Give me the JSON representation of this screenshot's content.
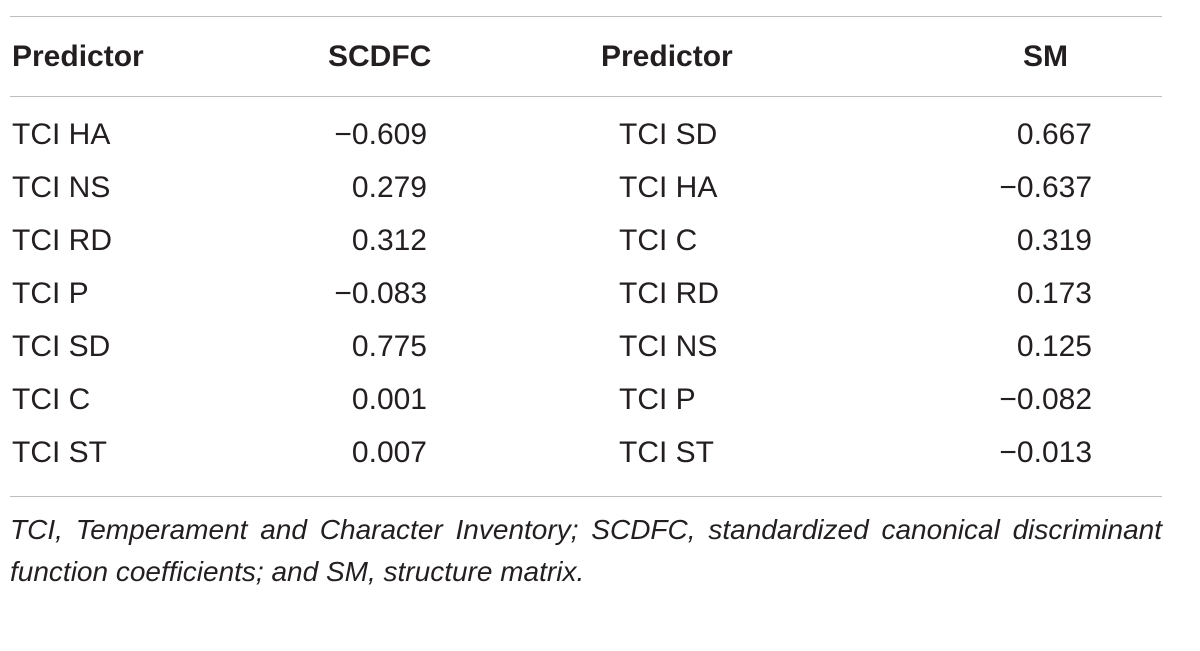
{
  "table": {
    "headers": {
      "predictor_1": "Predictor",
      "scdfc": "SCDFC",
      "predictor_2": "Predictor",
      "sm": "SM"
    },
    "rows": [
      {
        "predictor_1": "TCI HA",
        "scdfc": "−0.609",
        "predictor_2": "TCI SD",
        "sm": "0.667"
      },
      {
        "predictor_1": "TCI NS",
        "scdfc": "0.279",
        "predictor_2": "TCI HA",
        "sm": "−0.637"
      },
      {
        "predictor_1": "TCI RD",
        "scdfc": "0.312",
        "predictor_2": "TCI C",
        "sm": "0.319"
      },
      {
        "predictor_1": "TCI P",
        "scdfc": "−0.083",
        "predictor_2": "TCI RD",
        "sm": "0.173"
      },
      {
        "predictor_1": "TCI SD",
        "scdfc": "0.775",
        "predictor_2": "TCI NS",
        "sm": "0.125"
      },
      {
        "predictor_1": "TCI C",
        "scdfc": "0.001",
        "predictor_2": "TCI P",
        "sm": "−0.082"
      },
      {
        "predictor_1": "TCI ST",
        "scdfc": "0.007",
        "predictor_2": "TCI ST",
        "sm": "−0.013"
      }
    ],
    "footnote": "TCI, Temperament and Character Inventory; SCDFC, standardized canonical discriminant function coefficients; and SM, structure matrix."
  }
}
